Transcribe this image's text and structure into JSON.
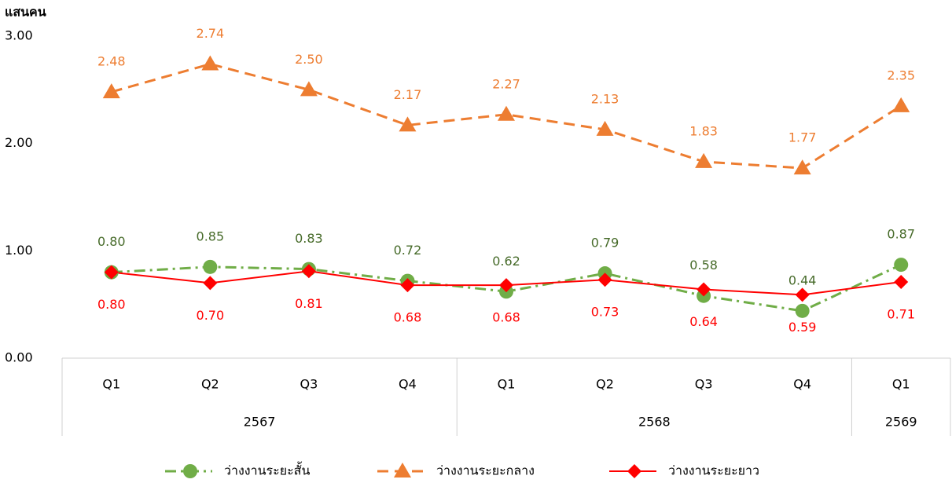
{
  "chart_data": {
    "type": "line",
    "y_axis_label": "แสนคน",
    "categories": [
      "Q1",
      "Q2",
      "Q3",
      "Q4",
      "Q1",
      "Q2",
      "Q3",
      "Q4",
      "Q1"
    ],
    "x_groups": [
      {
        "label": "2567",
        "count": 4
      },
      {
        "label": "2568",
        "count": 4
      },
      {
        "label": "2569",
        "count": 1
      }
    ],
    "ylim": [
      0,
      3
    ],
    "yticks": [
      {
        "value": 0,
        "label": "0.00"
      },
      {
        "value": 1,
        "label": "1.00"
      },
      {
        "value": 2,
        "label": "2.00"
      },
      {
        "value": 3,
        "label": "3.00"
      }
    ],
    "legend": "bottom",
    "series": [
      {
        "name": "ว่างงานระยะสั้น",
        "color": "#70ad47",
        "label_color": "#476b2a",
        "dash": "dash-dot",
        "marker": "circle",
        "label_position": "above",
        "values": [
          0.8,
          0.85,
          0.83,
          0.72,
          0.62,
          0.79,
          0.58,
          0.44,
          0.87
        ],
        "value_labels": [
          "0.80",
          "0.85",
          "0.83",
          "0.72",
          "0.62",
          "0.79",
          "0.58",
          "0.44",
          "0.87"
        ]
      },
      {
        "name": "ว่างงานระยะกลาง",
        "color": "#ed7d31",
        "label_color": "#ed7d31",
        "dash": "dashed",
        "marker": "triangle",
        "label_position": "above",
        "values": [
          2.48,
          2.74,
          2.5,
          2.17,
          2.27,
          2.13,
          1.83,
          1.77,
          2.35
        ],
        "value_labels": [
          "2.48",
          "2.74",
          "2.50",
          "2.17",
          "2.27",
          "2.13",
          "1.83",
          "1.77",
          "2.35"
        ]
      },
      {
        "name": "ว่างงานระยะยาว",
        "color": "#ff0000",
        "label_color": "#ff0000",
        "dash": "solid",
        "marker": "diamond",
        "label_position": "below",
        "values": [
          0.8,
          0.7,
          0.81,
          0.68,
          0.68,
          0.73,
          0.64,
          0.59,
          0.71
        ],
        "value_labels": [
          "0.80",
          "0.70",
          "0.81",
          "0.68",
          "0.68",
          "0.73",
          "0.64",
          "0.59",
          "0.71"
        ]
      }
    ]
  }
}
